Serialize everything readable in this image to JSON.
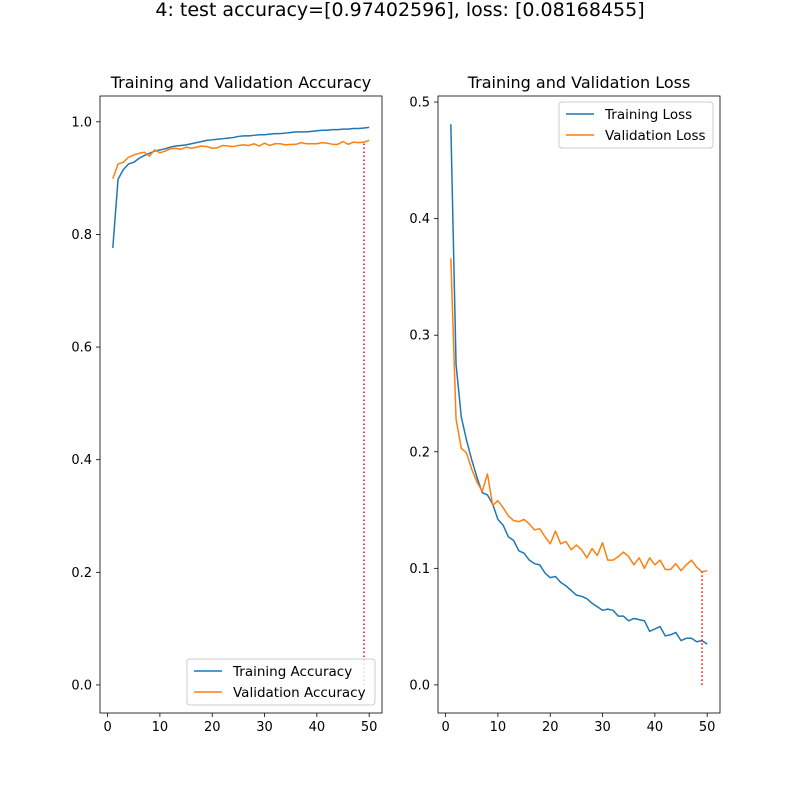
{
  "suptitle": "4: test accuracy=[0.97402596], loss: [0.08168455]",
  "chart_data": [
    {
      "type": "line",
      "title": "Training and Validation Accuracy",
      "xlabel": "",
      "ylabel": "",
      "xlim": [
        -1.45,
        52.45
      ],
      "ylim": [
        -0.0498,
        1.0458
      ],
      "xticks": [
        0,
        10,
        20,
        30,
        40,
        50
      ],
      "xtick_labels": [
        "0",
        "10",
        "20",
        "30",
        "40",
        "50"
      ],
      "yticks": [
        0.0,
        0.2,
        0.4,
        0.6,
        0.8,
        1.0
      ],
      "ytick_labels": [
        "0.0",
        "0.2",
        "0.4",
        "0.6",
        "0.8",
        "1.0"
      ],
      "grid": false,
      "legend_position": "lower right",
      "x": [
        1,
        2,
        3,
        4,
        5,
        6,
        7,
        8,
        9,
        10,
        11,
        12,
        13,
        14,
        15,
        16,
        17,
        18,
        19,
        20,
        21,
        22,
        23,
        24,
        25,
        26,
        27,
        28,
        29,
        30,
        31,
        32,
        33,
        34,
        35,
        36,
        37,
        38,
        39,
        40,
        41,
        42,
        43,
        44,
        45,
        46,
        47,
        48,
        49,
        50
      ],
      "series": [
        {
          "name": "Training Accuracy",
          "color": "#1f77b4",
          "values": [
            0.776,
            0.898,
            0.915,
            0.925,
            0.928,
            0.935,
            0.94,
            0.944,
            0.948,
            0.95,
            0.952,
            0.955,
            0.957,
            0.958,
            0.959,
            0.961,
            0.963,
            0.965,
            0.967,
            0.968,
            0.969,
            0.97,
            0.971,
            0.972,
            0.974,
            0.975,
            0.975,
            0.976,
            0.977,
            0.977,
            0.978,
            0.979,
            0.979,
            0.98,
            0.981,
            0.982,
            0.982,
            0.982,
            0.983,
            0.984,
            0.985,
            0.985,
            0.986,
            0.986,
            0.987,
            0.987,
            0.988,
            0.988,
            0.989,
            0.99
          ]
        },
        {
          "name": "Validation Accuracy",
          "color": "#ff7f0e",
          "values": [
            0.899,
            0.925,
            0.928,
            0.937,
            0.941,
            0.944,
            0.946,
            0.939,
            0.95,
            0.945,
            0.948,
            0.952,
            0.953,
            0.951,
            0.955,
            0.953,
            0.955,
            0.957,
            0.956,
            0.953,
            0.954,
            0.958,
            0.957,
            0.956,
            0.958,
            0.959,
            0.958,
            0.961,
            0.957,
            0.962,
            0.958,
            0.961,
            0.961,
            0.959,
            0.96,
            0.96,
            0.963,
            0.961,
            0.961,
            0.961,
            0.963,
            0.962,
            0.96,
            0.96,
            0.965,
            0.96,
            0.964,
            0.963,
            0.964,
            0.967
          ]
        }
      ],
      "marker_line": {
        "x": 49,
        "y_from": 0.0,
        "y_to": 0.964,
        "color": "#ff0000",
        "style": "dotted"
      }
    },
    {
      "type": "line",
      "title": "Training and Validation Loss",
      "xlabel": "",
      "ylabel": "",
      "xlim": [
        -1.45,
        52.45
      ],
      "ylim": [
        -0.0241,
        0.5052
      ],
      "xticks": [
        0,
        10,
        20,
        30,
        40,
        50
      ],
      "xtick_labels": [
        "0",
        "10",
        "20",
        "30",
        "40",
        "50"
      ],
      "yticks": [
        0.0,
        0.1,
        0.2,
        0.3,
        0.4,
        0.5
      ],
      "ytick_labels": [
        "0.0",
        "0.1",
        "0.2",
        "0.3",
        "0.4",
        "0.5"
      ],
      "grid": false,
      "legend_position": "upper right",
      "x": [
        1,
        2,
        3,
        4,
        5,
        6,
        7,
        8,
        9,
        10,
        11,
        12,
        13,
        14,
        15,
        16,
        17,
        18,
        19,
        20,
        21,
        22,
        23,
        24,
        25,
        26,
        27,
        28,
        29,
        30,
        31,
        32,
        33,
        34,
        35,
        36,
        37,
        38,
        39,
        40,
        41,
        42,
        43,
        44,
        45,
        46,
        47,
        48,
        49,
        50
      ],
      "series": [
        {
          "name": "Training Loss",
          "color": "#1f77b4",
          "values": [
            0.481,
            0.275,
            0.23,
            0.21,
            0.193,
            0.178,
            0.165,
            0.163,
            0.155,
            0.142,
            0.137,
            0.127,
            0.124,
            0.115,
            0.113,
            0.107,
            0.104,
            0.103,
            0.096,
            0.092,
            0.093,
            0.088,
            0.085,
            0.081,
            0.077,
            0.076,
            0.074,
            0.07,
            0.067,
            0.064,
            0.065,
            0.064,
            0.059,
            0.059,
            0.055,
            0.057,
            0.056,
            0.055,
            0.046,
            0.048,
            0.05,
            0.042,
            0.043,
            0.045,
            0.038,
            0.04,
            0.04,
            0.037,
            0.038,
            0.035
          ]
        },
        {
          "name": "Validation Loss",
          "color": "#ff7f0e",
          "values": [
            0.366,
            0.228,
            0.203,
            0.199,
            0.185,
            0.174,
            0.166,
            0.181,
            0.154,
            0.158,
            0.152,
            0.145,
            0.141,
            0.14,
            0.142,
            0.138,
            0.133,
            0.134,
            0.127,
            0.121,
            0.132,
            0.121,
            0.123,
            0.116,
            0.12,
            0.116,
            0.109,
            0.117,
            0.111,
            0.122,
            0.107,
            0.107,
            0.11,
            0.114,
            0.11,
            0.103,
            0.109,
            0.1,
            0.109,
            0.103,
            0.107,
            0.099,
            0.099,
            0.104,
            0.098,
            0.103,
            0.107,
            0.101,
            0.097,
            0.098
          ]
        }
      ],
      "marker_line": {
        "x": 49,
        "y_from": 0.0,
        "y_to": 0.097,
        "color": "#ff0000",
        "style": "dotted"
      }
    }
  ]
}
